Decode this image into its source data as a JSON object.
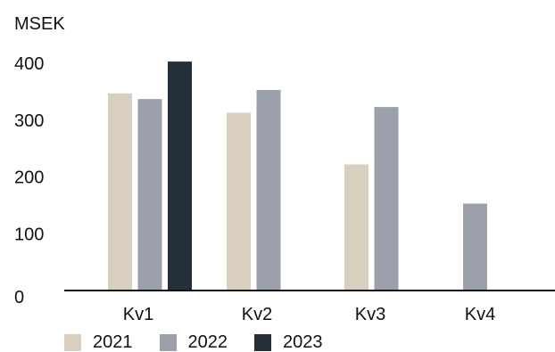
{
  "chart_data": {
    "type": "bar",
    "ylabel": "MSEK",
    "xlabel": "",
    "title": "",
    "ylim": [
      0,
      400
    ],
    "yticks": [
      0,
      100,
      200,
      300,
      400
    ],
    "categories": [
      "Kv1",
      "Kv2",
      "Kv3",
      "Kv4"
    ],
    "series": [
      {
        "name": "2021",
        "color": "#d9cfc1",
        "values": [
          347,
          313,
          222,
          null
        ]
      },
      {
        "name": "2022",
        "color": "#9ba0aa",
        "values": [
          337,
          353,
          323,
          153
        ]
      },
      {
        "name": "2023",
        "color": "#252f3a",
        "values": [
          403,
          null,
          null,
          null
        ]
      }
    ],
    "grid": false,
    "legend_position": "bottom-left"
  }
}
